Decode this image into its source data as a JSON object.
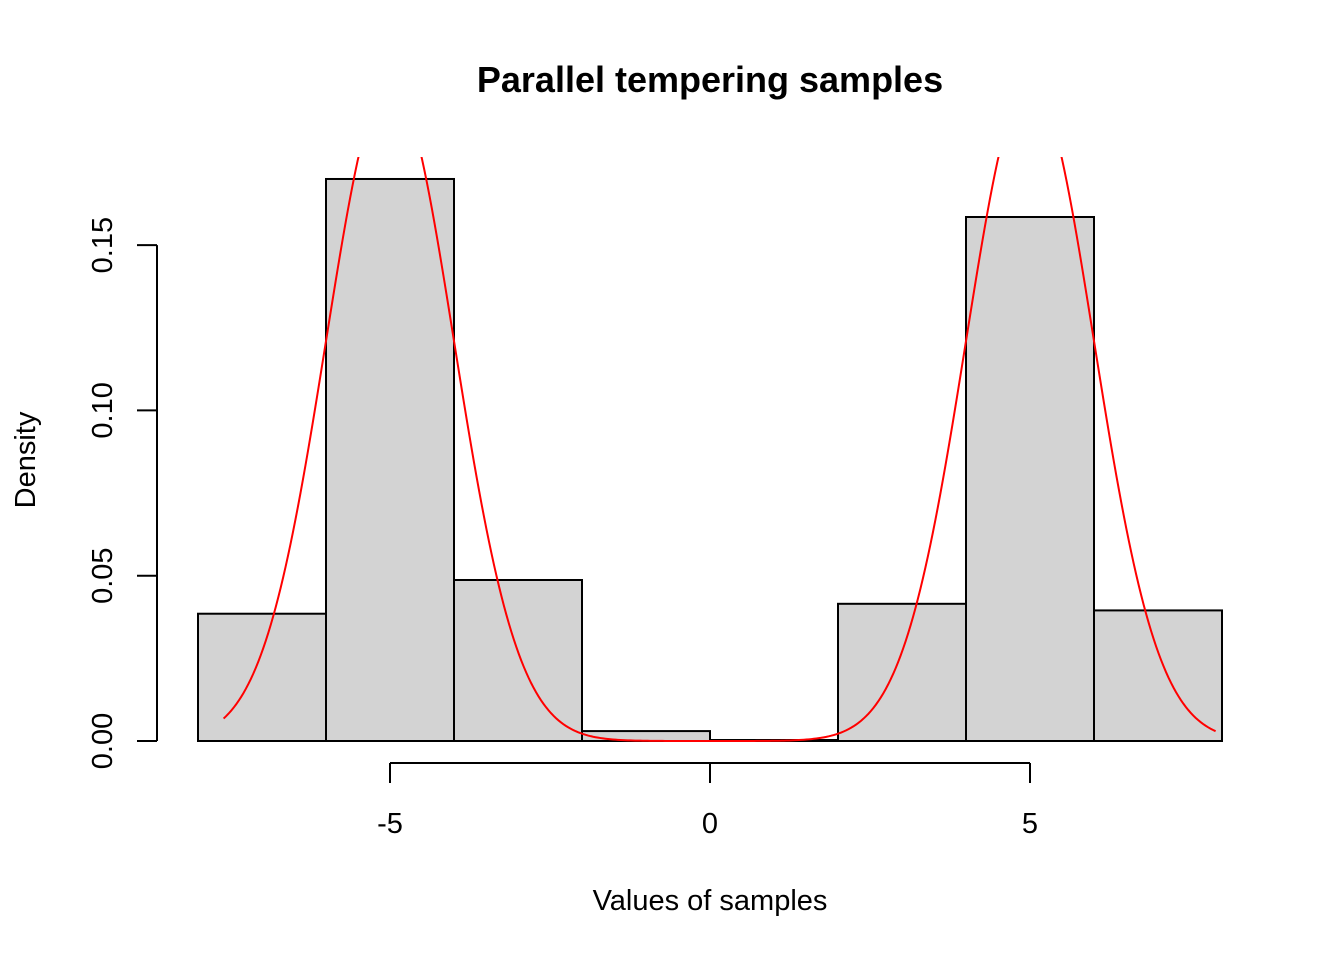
{
  "chart_data": {
    "type": "bar",
    "subtype": "histogram",
    "title": "Parallel tempering samples",
    "xlabel": "Values of samples",
    "ylabel": "Density",
    "xlim": [
      -8,
      8
    ],
    "ylim": [
      0,
      0.175
    ],
    "x_ticks": [
      {
        "value": -5,
        "label": "-5"
      },
      {
        "value": 0,
        "label": "0"
      },
      {
        "value": 5,
        "label": "5"
      }
    ],
    "y_ticks": [
      {
        "value": 0,
        "label": "0.00"
      },
      {
        "value": 0.05,
        "label": "0.05"
      },
      {
        "value": 0.1,
        "label": "0.10"
      },
      {
        "value": 0.15,
        "label": "0.15"
      }
    ],
    "bins": [
      {
        "from": -8,
        "to": -6,
        "density": 0.0385
      },
      {
        "from": -6,
        "to": -4,
        "density": 0.17
      },
      {
        "from": -4,
        "to": -2,
        "density": 0.0487
      },
      {
        "from": -2,
        "to": 0,
        "density": 0.003
      },
      {
        "from": 0,
        "to": 2,
        "density": 0.0003
      },
      {
        "from": 2,
        "to": 4,
        "density": 0.0415
      },
      {
        "from": 4,
        "to": 6,
        "density": 0.1585
      },
      {
        "from": 6,
        "to": 8,
        "density": 0.0395
      }
    ],
    "density_curve": {
      "kind": "mixture of two normals",
      "components": [
        {
          "mean": -5,
          "sd": 1,
          "weight": 0.5
        },
        {
          "mean": 5,
          "sd": 1,
          "weight": 0.5
        }
      ],
      "x_range": [
        -7.6,
        7.9
      ]
    },
    "colors": {
      "bar_fill": "#d3d3d3",
      "bar_stroke": "#000000",
      "curve": "#ff0000"
    },
    "grid": false,
    "legend": "none"
  }
}
